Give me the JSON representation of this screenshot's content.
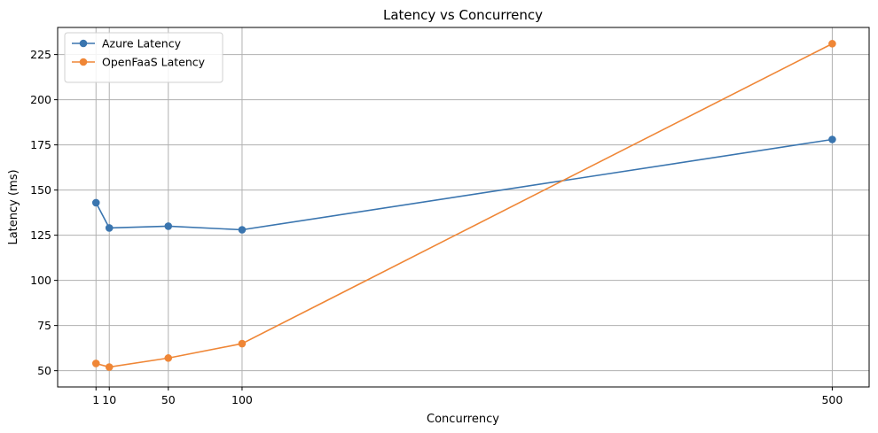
{
  "chart_data": {
    "type": "line",
    "title": "Latency vs Concurrency",
    "xlabel": "Concurrency",
    "ylabel": "Latency (ms)",
    "x": [
      1,
      10,
      50,
      100,
      500
    ],
    "x_ticks": [
      1,
      10,
      50,
      100,
      500
    ],
    "x_tick_labels": [
      "1",
      "10",
      "50",
      "100",
      "500"
    ],
    "xlim": [
      -25,
      525
    ],
    "y_ticks": [
      50,
      75,
      100,
      125,
      150,
      175,
      200,
      225
    ],
    "ylim": [
      41,
      240
    ],
    "grid": true,
    "legend_position": "top-left",
    "series": [
      {
        "name": "Azure Latency",
        "color": "#3a75af",
        "marker": "circle",
        "values": [
          143,
          129,
          130,
          128,
          178
        ]
      },
      {
        "name": "OpenFaaS Latency",
        "color": "#ef8636",
        "marker": "circle",
        "values": [
          54,
          52,
          57,
          65,
          231
        ]
      }
    ]
  }
}
